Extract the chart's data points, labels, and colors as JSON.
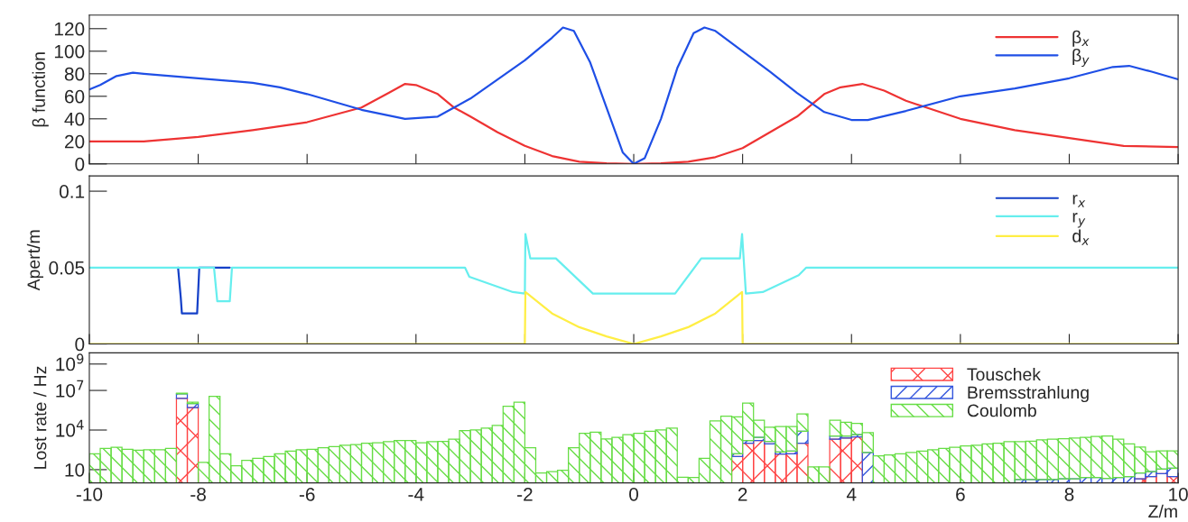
{
  "chart_data": [
    {
      "type": "line",
      "ylabel": "β function",
      "xlim": [
        -10,
        10
      ],
      "xticks": [
        -10,
        -8,
        -6,
        -4,
        -2,
        0,
        2,
        4,
        6,
        8,
        10
      ],
      "ylim": [
        0,
        132
      ],
      "yticks": [
        0,
        20,
        40,
        60,
        80,
        100,
        120
      ],
      "tick_labels": "y",
      "legend": "top right",
      "grid": false,
      "series": [
        {
          "name": "β$_{x}$",
          "color": "#ee3333",
          "x": [
            -10,
            -9,
            -8,
            -7,
            -6,
            -5,
            -4.5,
            -4.2,
            -4,
            -3.6,
            -3.3,
            -3,
            -2.5,
            -2,
            -1.5,
            -1,
            -0.5,
            0,
            0.5,
            1,
            1.5,
            2,
            2.5,
            3,
            3.5,
            3.8,
            4.2,
            4.6,
            5,
            6,
            7,
            8,
            9,
            10
          ],
          "values": [
            20,
            20,
            24,
            30,
            37,
            50,
            63,
            71,
            70,
            62,
            50,
            42,
            28,
            16,
            7,
            2,
            0.5,
            0,
            0.5,
            2,
            6,
            14,
            28,
            42,
            62,
            68,
            71,
            65,
            56,
            40,
            30,
            23,
            16,
            15
          ]
        },
        {
          "name": "β$_{y}$",
          "color": "#1f4fe6",
          "x": [
            -10,
            -9.8,
            -9.5,
            -9.2,
            -9,
            -8,
            -7,
            -6.5,
            -6,
            -5,
            -4.2,
            -3.6,
            -3.3,
            -3,
            -2.5,
            -2,
            -1.5,
            -1.3,
            -1.1,
            -0.8,
            -0.5,
            -0.2,
            0,
            0.2,
            0.5,
            0.8,
            1.1,
            1.3,
            1.5,
            2,
            2.5,
            3,
            3.5,
            4,
            4.3,
            5,
            6,
            7,
            8,
            8.8,
            9.1,
            9.5,
            10
          ],
          "values": [
            66,
            70,
            78,
            81,
            80,
            76,
            72,
            68,
            62,
            48,
            40,
            42,
            50,
            58,
            75,
            92,
            112,
            121,
            118,
            90,
            50,
            10,
            0,
            5,
            40,
            85,
            116,
            121,
            118,
            100,
            82,
            63,
            46,
            39,
            39,
            47,
            60,
            67,
            76,
            86,
            87,
            82,
            75
          ]
        }
      ]
    },
    {
      "type": "line",
      "ylabel": "Apert/m",
      "xlim": [
        -10,
        10
      ],
      "xticks": [
        -10,
        -8,
        -6,
        -4,
        -2,
        0,
        2,
        4,
        6,
        8,
        10
      ],
      "ylim": [
        0,
        0.11
      ],
      "yticks": [
        0,
        0.05,
        0.1
      ],
      "tick_labels": "y",
      "legend": "top right",
      "grid": false,
      "series": [
        {
          "name": "r$_{x}$",
          "color": "#1440c8",
          "x": [
            -8.37,
            -8.32,
            -8.3,
            -8.02,
            -7.98,
            -7.65,
            -7.42
          ],
          "values": [
            0.05,
            0.03,
            0.02,
            0.02,
            0.05,
            0.05,
            0.05
          ]
        },
        {
          "name": "r$_{y}$",
          "color": "#66eeee",
          "x": [
            -10,
            -7.71,
            -7.65,
            -7.42,
            -7.38,
            -3.1,
            -3.02,
            -2.22,
            -2.0,
            -1.99,
            -1.9,
            -1.43,
            -0.75,
            0.76,
            1.24,
            1.95,
            1.99,
            2.06,
            2.37,
            3.03,
            3.17,
            10
          ],
          "values": [
            0.05,
            0.05,
            0.028,
            0.028,
            0.05,
            0.05,
            0.044,
            0.034,
            0.033,
            0.072,
            0.056,
            0.056,
            0.033,
            0.033,
            0.056,
            0.056,
            0.072,
            0.033,
            0.034,
            0.045,
            0.05,
            0.05
          ]
        },
        {
          "name": "d$_{x}$",
          "color": "#ffee44",
          "x": [
            -10,
            -2.0,
            -1.99,
            -1.5,
            -1,
            -0.5,
            0,
            0.5,
            1,
            1.5,
            1.99,
            2.0,
            10
          ],
          "values": [
            0,
            0,
            0.034,
            0.02,
            0.011,
            0.005,
            0,
            0.005,
            0.011,
            0.02,
            0.034,
            0,
            0
          ]
        }
      ]
    },
    {
      "type": "bar",
      "stacked": true,
      "ylabel": "Lost rate / Hz",
      "xlabel": "Z/m",
      "log": "y",
      "xlim": [
        -10,
        10
      ],
      "xticks": [
        -10,
        -8,
        -6,
        -4,
        -2,
        0,
        2,
        4,
        6,
        8,
        10
      ],
      "ylim": [
        1,
        7000000000
      ],
      "yticks": [
        10,
        {
          "value": 10000,
          "label": "10$^{4}$"
        },
        {
          "value": 10000000,
          "label": "10$^{7}$"
        },
        {
          "value": 1000000000,
          "label": "10$^{9}$"
        }
      ],
      "legend": "top right",
      "grid": false,
      "x": [
        -9.9,
        -9.7,
        -9.5,
        -9.3,
        -9.1,
        -8.9,
        -8.7,
        -8.5,
        -8.3,
        -8.1,
        -7.9,
        -7.7,
        -7.5,
        -7.3,
        -7.1,
        -6.9,
        -6.7,
        -6.5,
        -6.3,
        -6.1,
        -5.9,
        -5.7,
        -5.5,
        -5.3,
        -5.1,
        -4.9,
        -4.7,
        -4.5,
        -4.3,
        -4.1,
        -3.9,
        -3.7,
        -3.5,
        -3.3,
        -3.1,
        -2.9,
        -2.7,
        -2.5,
        -2.3,
        -2.1,
        -1.9,
        -1.7,
        -1.5,
        -1.3,
        -1.1,
        -0.9,
        -0.7,
        -0.5,
        -0.3,
        -0.1,
        0.1,
        0.3,
        0.5,
        0.7,
        0.9,
        1.1,
        1.3,
        1.5,
        1.7,
        1.9,
        2.1,
        2.3,
        2.5,
        2.7,
        2.9,
        3.1,
        3.3,
        3.5,
        3.7,
        3.9,
        4.1,
        4.3,
        4.5,
        4.7,
        4.9,
        5.1,
        5.3,
        5.5,
        5.7,
        5.9,
        6.1,
        6.3,
        6.5,
        6.7,
        6.9,
        7.1,
        7.3,
        7.5,
        7.7,
        7.9,
        8.1,
        8.3,
        8.5,
        8.7,
        8.9,
        9.1,
        9.3,
        9.5,
        9.7,
        9.9
      ],
      "series": [
        {
          "name": "Touschek",
          "color": "#ff4444",
          "values": [
            null,
            null,
            null,
            null,
            null,
            null,
            null,
            null,
            2500000,
            500000,
            null,
            null,
            null,
            null,
            null,
            null,
            null,
            null,
            null,
            null,
            null,
            null,
            null,
            null,
            null,
            null,
            null,
            null,
            null,
            null,
            null,
            null,
            null,
            null,
            null,
            null,
            null,
            null,
            null,
            null,
            null,
            null,
            null,
            null,
            null,
            null,
            null,
            null,
            null,
            null,
            null,
            null,
            null,
            null,
            null,
            null,
            null,
            null,
            null,
            100,
            1000,
            1600,
            900,
            150,
            160,
            1000,
            null,
            null,
            2000,
            2500,
            3000,
            null,
            null,
            null,
            null,
            null,
            null,
            null,
            null,
            null,
            null,
            null,
            null,
            null,
            null,
            null,
            null,
            null,
            null,
            null,
            null,
            null,
            null,
            null,
            null,
            null,
            2,
            3,
            5,
            3
          ]
        },
        {
          "name": "Bremsstrahlung",
          "color": "#3355dd",
          "values": [
            null,
            null,
            null,
            null,
            null,
            null,
            null,
            null,
            3000000,
            500000,
            null,
            null,
            null,
            null,
            null,
            null,
            null,
            null,
            null,
            null,
            null,
            null,
            null,
            null,
            null,
            null,
            null,
            null,
            null,
            null,
            null,
            null,
            null,
            null,
            null,
            null,
            null,
            null,
            null,
            null,
            null,
            null,
            null,
            null,
            null,
            null,
            null,
            null,
            null,
            null,
            null,
            null,
            null,
            null,
            null,
            null,
            null,
            null,
            null,
            60,
            600,
            1200,
            500,
            70,
            90,
            6900,
            null,
            null,
            1500,
            1000,
            1500,
            200,
            null,
            null,
            null,
            null,
            null,
            null,
            null,
            null,
            null,
            null,
            null,
            null,
            null,
            1.8,
            1.8,
            1.8,
            1.8,
            2,
            2,
            2.5,
            2.5,
            2.2,
            2.5,
            3,
            3.5,
            4,
            6,
            10
          ]
        },
        {
          "name": "Coulomb",
          "color": "#66dd44",
          "values": [
            160,
            400,
            500,
            350,
            300,
            320,
            320,
            400,
            800000,
            300000,
            35,
            3500000,
            160,
            20,
            50,
            71,
            100,
            160,
            250,
            320,
            350,
            450,
            560,
            710,
            790,
            1000,
            1100,
            1300,
            1600,
            1600,
            1100,
            1300,
            1400,
            2000,
            8900,
            10000,
            14000,
            22000,
            630000,
            1300000,
            450,
            5.6,
            7.1,
            8.9,
            450,
            5600,
            6800,
            2100,
            2800,
            4500,
            5600,
            7900,
            10000,
            14000,
            2.7,
            2.5,
            71,
            50000,
            110000,
            100000,
            1100000,
            53000,
            15000,
            18000,
            18000,
            160000,
            16,
            16,
            52000,
            36000,
            28000,
            6100,
            110,
            130,
            160,
            200,
            250,
            320,
            400,
            500,
            630,
            710,
            890,
            1000,
            1300,
            1300,
            1400,
            1800,
            2000,
            2200,
            2500,
            2800,
            3200,
            3500,
            2000,
            890,
            500,
            220,
            250,
            250
          ]
        }
      ]
    }
  ]
}
